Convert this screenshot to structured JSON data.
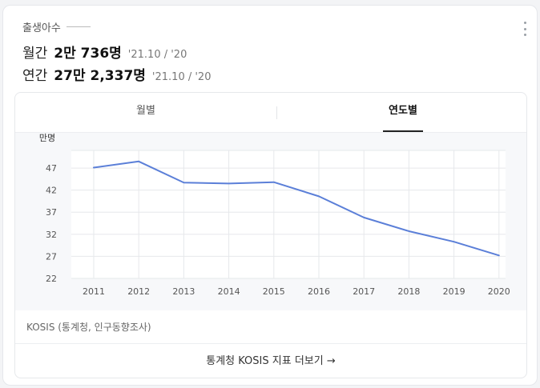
{
  "header": {
    "title": "출생아수"
  },
  "stats": {
    "monthly": {
      "label": "월간",
      "value": "2만 736명",
      "period": "'21.10 / '20"
    },
    "yearly": {
      "label": "연간",
      "value": "27만 2,337명",
      "period": "'21.10 / '20"
    }
  },
  "tabs": [
    {
      "label": "월별",
      "active": false
    },
    {
      "label": "연도별",
      "active": true
    }
  ],
  "source": "KOSIS (통계청, 인구동향조사)",
  "footer": {
    "link_label": "통계청 KOSIS 지표 더보기",
    "arrow": "→"
  },
  "colors": {
    "line": "#5b7fd8",
    "grid": "#e6e8eb"
  },
  "chart_data": {
    "type": "line",
    "unit_label": "만명",
    "categories": [
      "2011",
      "2012",
      "2013",
      "2014",
      "2015",
      "2016",
      "2017",
      "2018",
      "2019",
      "2020"
    ],
    "values": [
      47.1,
      48.5,
      43.7,
      43.5,
      43.8,
      40.6,
      35.8,
      32.7,
      30.3,
      27.2
    ],
    "y_ticks": [
      22,
      27,
      32,
      37,
      42,
      47
    ],
    "ylim": [
      22,
      51
    ],
    "grid": true,
    "legend": "none"
  }
}
